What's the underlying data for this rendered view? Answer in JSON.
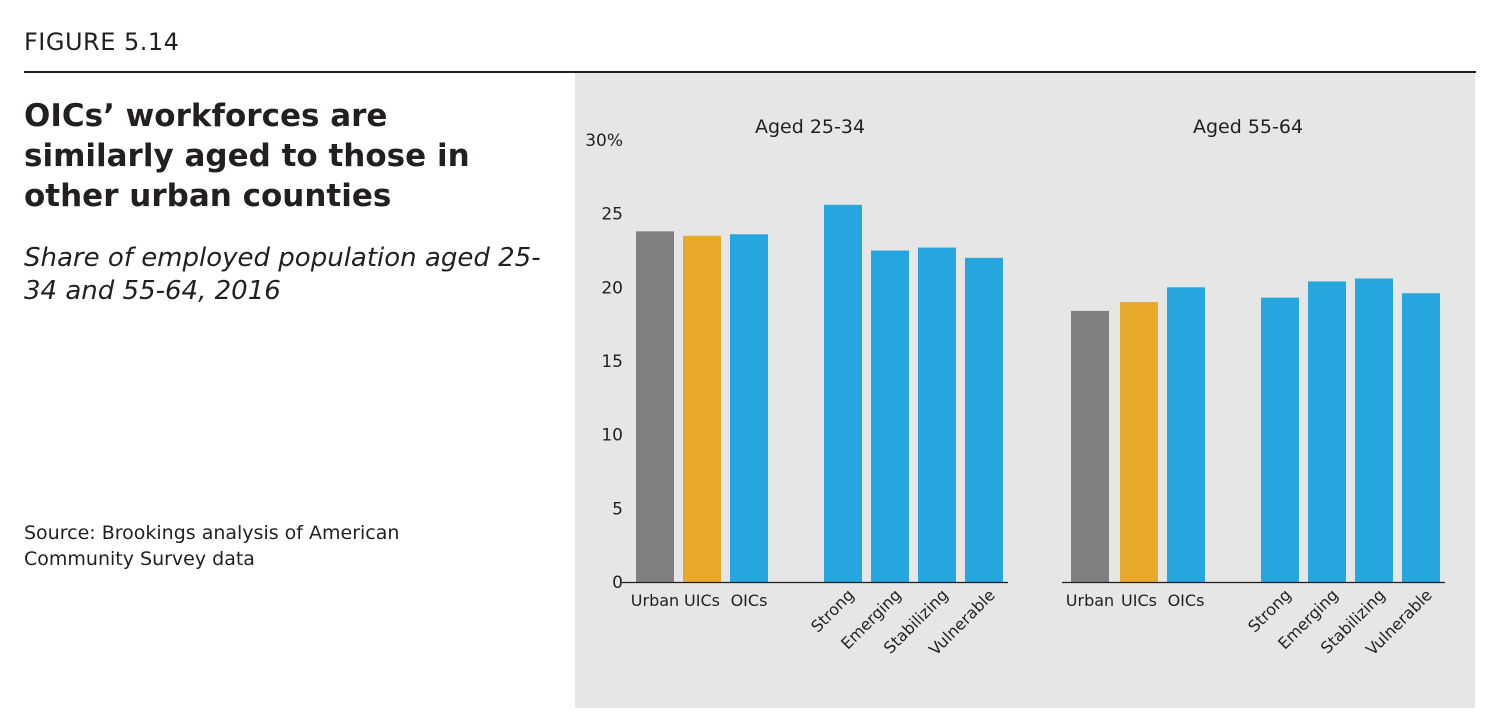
{
  "figure_label": "FIGURE 5.14",
  "title": "OICs’ workforces are similarly aged to those in other urban counties",
  "subtitle": "Share of employed population aged 25-34 and 55-64, 2016",
  "source": "Source: Brookings analysis of American Community Survey data",
  "chart_data": [
    {
      "type": "bar",
      "title": "Aged 25-34",
      "categories": [
        "Urban",
        "UICs",
        "OICs",
        "Strong",
        "Emerging",
        "Stabilizing",
        "Vulnerable"
      ],
      "values": [
        23.8,
        23.5,
        23.6,
        25.6,
        22.5,
        22.7,
        22.0
      ],
      "colors": [
        "#808080",
        "#e8a82a",
        "#25a6df",
        "#25a6df",
        "#25a6df",
        "#25a6df",
        "#25a6df"
      ],
      "ylim": [
        0,
        30
      ],
      "yticks": [
        0,
        5,
        10,
        15,
        20,
        25,
        30
      ],
      "ytick_labels": [
        "0",
        "5",
        "10",
        "15",
        "20",
        "25",
        "30%"
      ],
      "grid": false
    },
    {
      "type": "bar",
      "title": "Aged 55-64",
      "categories": [
        "Urban",
        "UICs",
        "OICs",
        "Strong",
        "Emerging",
        "Stabilizing",
        "Vulnerable"
      ],
      "values": [
        18.4,
        19.0,
        20.0,
        19.3,
        20.4,
        20.6,
        19.6
      ],
      "colors": [
        "#808080",
        "#e8a82a",
        "#25a6df",
        "#25a6df",
        "#25a6df",
        "#25a6df",
        "#25a6df"
      ],
      "ylim": [
        0,
        30
      ],
      "grid": false
    }
  ]
}
